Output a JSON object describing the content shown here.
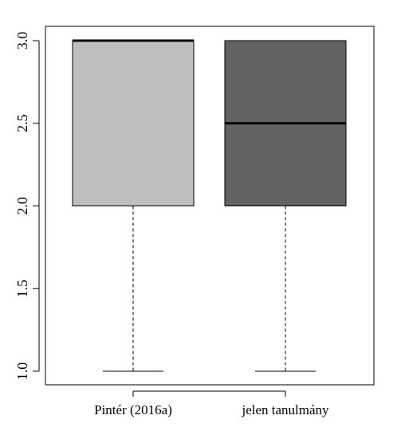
{
  "chart_data": {
    "type": "boxplot",
    "title": "",
    "xlabel": "",
    "ylabel": "",
    "ylim": [
      1.0,
      3.0
    ],
    "yticks": [
      1.0,
      1.5,
      2.0,
      2.5,
      3.0
    ],
    "ytick_labels": [
      "1.0",
      "1.5",
      "2.0",
      "2.5",
      "3.0"
    ],
    "grid": false,
    "categories": [
      "Pintér (2016a)",
      "jelen tanulmány"
    ],
    "boxes": [
      {
        "category": "Pintér (2016a)",
        "min": 1.0,
        "q1": 2.0,
        "median": 3.0,
        "q3": 3.0,
        "max": 3.0,
        "fill": "#bebebe"
      },
      {
        "category": "jelen tanulmány",
        "min": 1.0,
        "q1": 2.0,
        "median": 2.5,
        "q3": 3.0,
        "max": 3.0,
        "fill": "#636363"
      }
    ]
  }
}
